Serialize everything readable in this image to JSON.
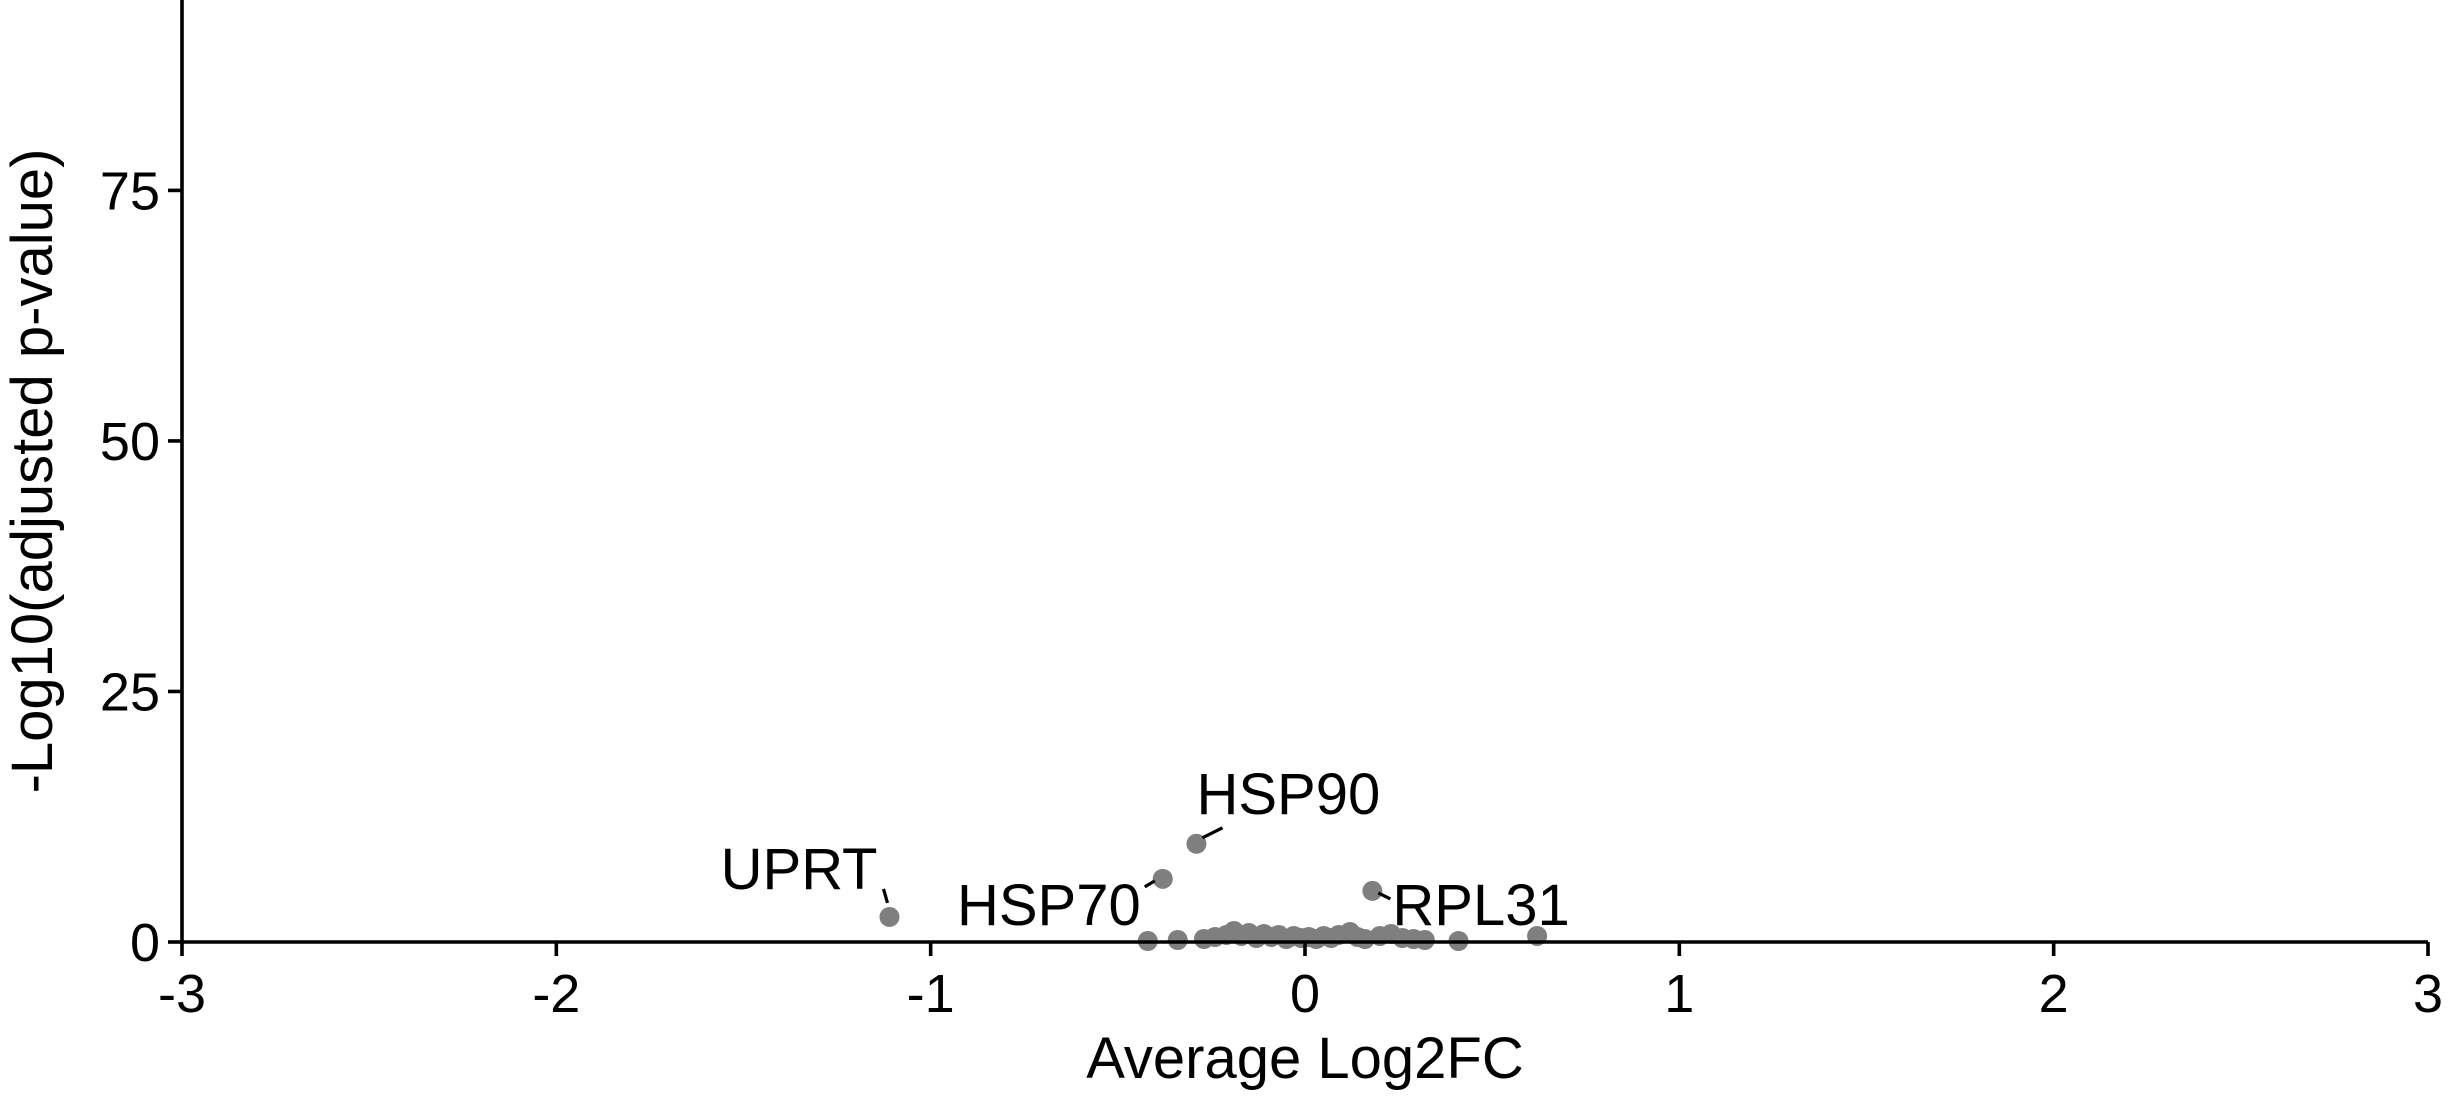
{
  "chart_data": {
    "type": "scatter",
    "title": "",
    "xlabel": "Average Log2FC",
    "ylabel": "-Log10(adjusted p-value)",
    "xlim": [
      -3,
      3
    ],
    "ylim": [
      0,
      94
    ],
    "xticks": [
      -3,
      -2,
      -1,
      0,
      1,
      2,
      3
    ],
    "yticks": [
      0,
      25,
      50,
      75
    ],
    "grid": false,
    "point_color": "#7f7f7f",
    "points": [
      {
        "x": -1.11,
        "y": 2.5
      },
      {
        "x": -0.38,
        "y": 6.3
      },
      {
        "x": -0.29,
        "y": 9.8
      },
      {
        "x": 0.18,
        "y": 5.1
      },
      {
        "x": 0.62,
        "y": 0.6
      },
      {
        "x": -0.42,
        "y": 0.1
      },
      {
        "x": -0.34,
        "y": 0.2
      },
      {
        "x": -0.27,
        "y": 0.3
      },
      {
        "x": -0.24,
        "y": 0.5
      },
      {
        "x": -0.21,
        "y": 0.7
      },
      {
        "x": -0.19,
        "y": 1.1
      },
      {
        "x": -0.17,
        "y": 0.6
      },
      {
        "x": -0.15,
        "y": 0.9
      },
      {
        "x": -0.13,
        "y": 0.4
      },
      {
        "x": -0.11,
        "y": 0.8
      },
      {
        "x": -0.09,
        "y": 0.5
      },
      {
        "x": -0.07,
        "y": 0.7
      },
      {
        "x": -0.05,
        "y": 0.3
      },
      {
        "x": -0.03,
        "y": 0.6
      },
      {
        "x": -0.01,
        "y": 0.4
      },
      {
        "x": 0.01,
        "y": 0.5
      },
      {
        "x": 0.03,
        "y": 0.3
      },
      {
        "x": 0.05,
        "y": 0.6
      },
      {
        "x": 0.07,
        "y": 0.4
      },
      {
        "x": 0.09,
        "y": 0.7
      },
      {
        "x": 0.12,
        "y": 1.0
      },
      {
        "x": 0.14,
        "y": 0.5
      },
      {
        "x": 0.16,
        "y": 0.3
      },
      {
        "x": 0.2,
        "y": 0.6
      },
      {
        "x": 0.23,
        "y": 0.8
      },
      {
        "x": 0.26,
        "y": 0.4
      },
      {
        "x": 0.29,
        "y": 0.3
      },
      {
        "x": 0.32,
        "y": 0.2
      },
      {
        "x": 0.41,
        "y": 0.1
      }
    ],
    "labels": [
      {
        "text": "UPRT",
        "x": -1.11,
        "y": 2.5
      },
      {
        "text": "HSP70",
        "x": -0.38,
        "y": 6.3
      },
      {
        "text": "HSP90",
        "x": -0.29,
        "y": 9.8
      },
      {
        "text": "RPL31",
        "x": 0.18,
        "y": 5.1
      }
    ]
  }
}
